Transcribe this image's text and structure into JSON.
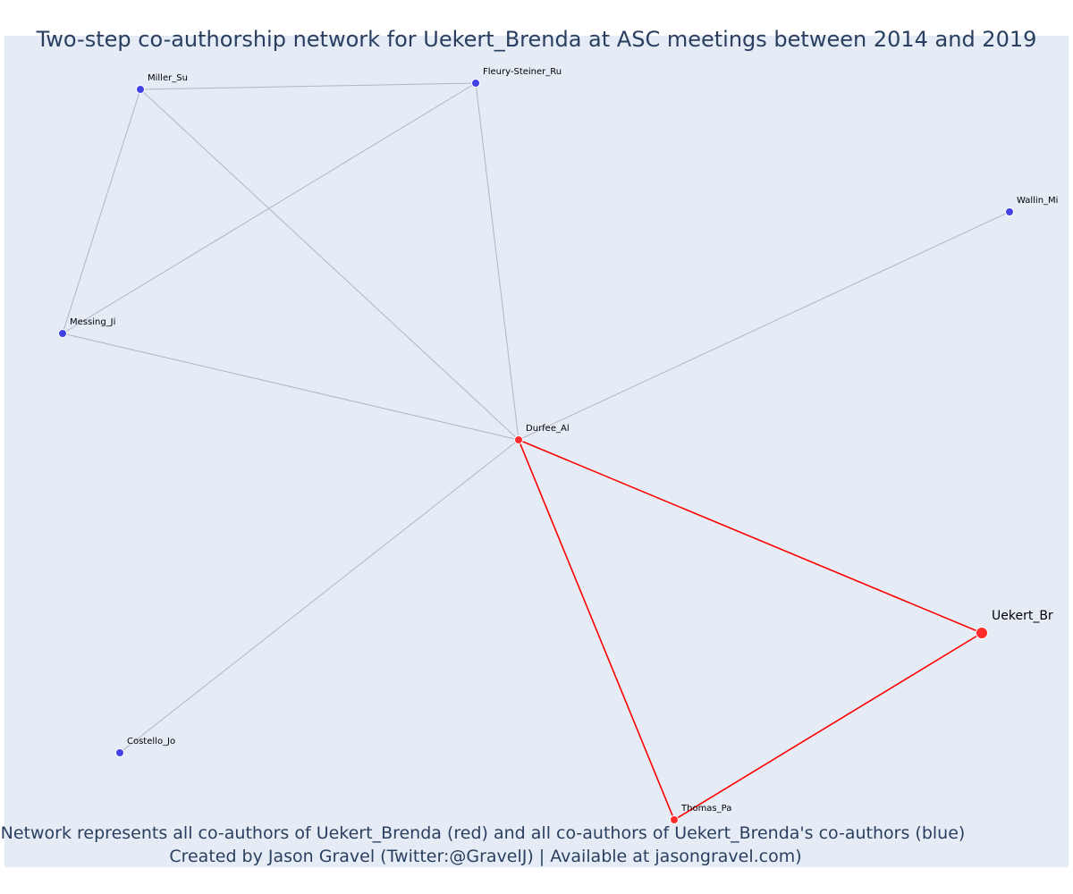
{
  "title": "Two-step co-authorship network for Uekert_Brenda at ASC meetings between 2014 and 2019",
  "caption_lines": [
    "Network represents all co-authors of Uekert_Brenda (red) and all co-authors of Uekert_Brenda's co-authors (blue)",
    "Created by Jason Gravel (Twitter:@GravelJ) | Available at jasongravel.com)"
  ],
  "colors": {
    "plot_background": "#e5ecf6",
    "first_degree": "#ff2a2a",
    "second_degree": "#4141e6",
    "first_degree_edge": "#ff0000",
    "second_degree_edge": "#b4b4c3",
    "text": "#2a3f5f"
  },
  "nodes": [
    {
      "id": "Uekert_Br",
      "label": "Uekert_Br",
      "group": "ego"
    },
    {
      "id": "Durfee_Al",
      "label": "Durfee_Al",
      "group": "first"
    },
    {
      "id": "Thomas_Pa",
      "label": "Thomas_Pa",
      "group": "first"
    },
    {
      "id": "Miller_Su",
      "label": "Miller_Su",
      "group": "second"
    },
    {
      "id": "Fleury-Steiner_Ru",
      "label": "Fleury-Steiner_Ru",
      "group": "second"
    },
    {
      "id": "Wallin_Mi",
      "label": "Wallin_Mi",
      "group": "second"
    },
    {
      "id": "Messing_Ji",
      "label": "Messing_Ji",
      "group": "second"
    },
    {
      "id": "Costello_Jo",
      "label": "Costello_Jo",
      "group": "second"
    }
  ],
  "edges": [
    {
      "source": "Uekert_Br",
      "target": "Durfee_Al",
      "group": "first"
    },
    {
      "source": "Uekert_Br",
      "target": "Thomas_Pa",
      "group": "first"
    },
    {
      "source": "Durfee_Al",
      "target": "Thomas_Pa",
      "group": "first"
    },
    {
      "source": "Durfee_Al",
      "target": "Miller_Su",
      "group": "second"
    },
    {
      "source": "Durfee_Al",
      "target": "Fleury-Steiner_Ru",
      "group": "second"
    },
    {
      "source": "Durfee_Al",
      "target": "Wallin_Mi",
      "group": "second"
    },
    {
      "source": "Durfee_Al",
      "target": "Messing_Ji",
      "group": "second"
    },
    {
      "source": "Durfee_Al",
      "target": "Costello_Jo",
      "group": "second"
    },
    {
      "source": "Miller_Su",
      "target": "Fleury-Steiner_Ru",
      "group": "second"
    },
    {
      "source": "Miller_Su",
      "target": "Messing_Ji",
      "group": "second"
    },
    {
      "source": "Fleury-Steiner_Ru",
      "target": "Messing_Ji",
      "group": "second"
    }
  ]
}
